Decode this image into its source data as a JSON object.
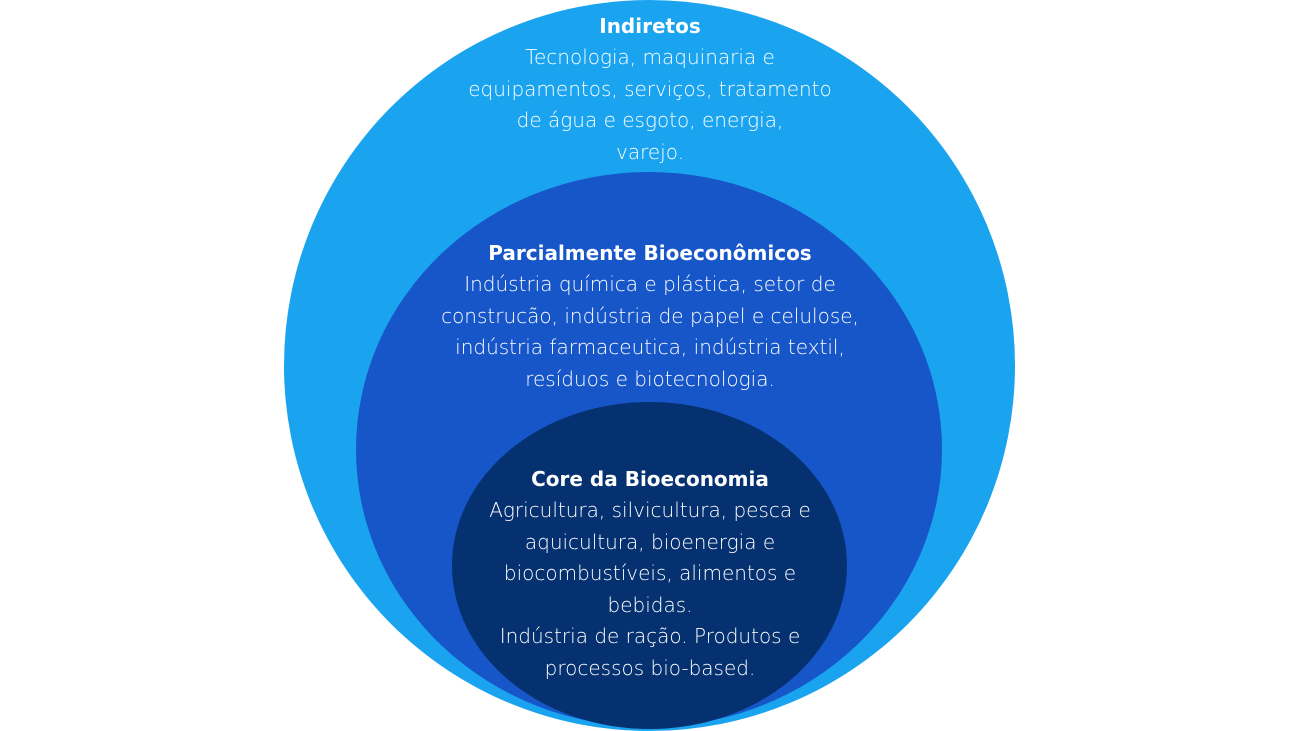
{
  "colors": {
    "outer": "#1aa3ef",
    "middle": "#1756c8",
    "inner": "#053170",
    "text": "#ffffff"
  },
  "layers": {
    "outer": {
      "title": "Indiretos",
      "body": "Tecnologia, maquinaria e\nequipamentos, serviços,  tratamento\nde água e esgoto, energia,\nvarejo."
    },
    "middle": {
      "title": "Parcialmente Bioeconômicos",
      "body": "Indústria química e plástica, setor de\nconstrucão, indústria de papel e celulose,\nindústria farmaceutica, indústria textil,\nresíduos e biotecnologia."
    },
    "inner": {
      "title": "Core da Bioeconomia",
      "body": "Agricultura, silvicultura, pesca e\naquicultura, bioenergia e\nbiocombustíveis, alimentos e\nbebidas.\nIndústria de ração. Produtos e\nprocessos bio-based."
    }
  }
}
